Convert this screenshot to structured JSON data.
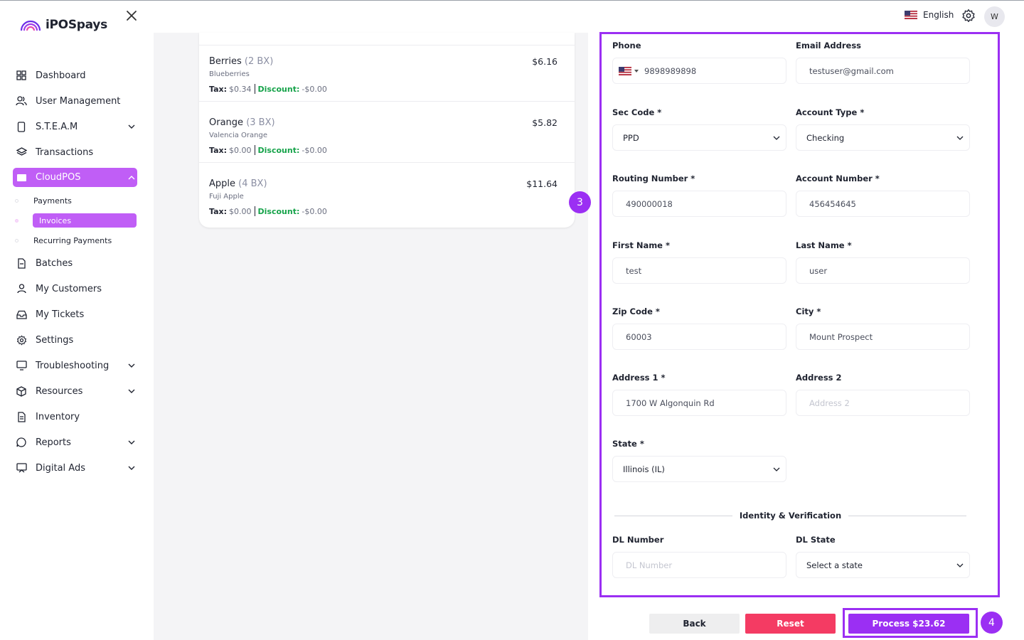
{
  "brand": {
    "name": "iPOSpays"
  },
  "sidebar": {
    "items": [
      {
        "label": "Dashboard",
        "icon": "grid-icon",
        "chevron": false
      },
      {
        "label": "User Management",
        "icon": "users-icon",
        "chevron": false
      },
      {
        "label": "S.T.E.A.M",
        "icon": "device-icon",
        "chevron": true
      },
      {
        "label": "Transactions",
        "icon": "layers-icon",
        "chevron": false
      },
      {
        "label": "CloudPOS",
        "icon": "cloudpos-icon",
        "chevron": true,
        "active": true
      }
    ],
    "subitems": [
      {
        "label": "Payments"
      },
      {
        "label": "Invoices",
        "active": true
      },
      {
        "label": "Recurring Payments"
      }
    ],
    "items_after": [
      {
        "label": "Batches",
        "icon": "batch-icon",
        "chevron": false
      },
      {
        "label": "My Customers",
        "icon": "person-icon",
        "chevron": false
      },
      {
        "label": "My Tickets",
        "icon": "inbox-icon",
        "chevron": false
      },
      {
        "label": "Settings",
        "icon": "gear-icon",
        "chevron": false
      },
      {
        "label": "Troubleshooting",
        "icon": "monitor-icon",
        "chevron": true
      },
      {
        "label": "Resources",
        "icon": "box-icon",
        "chevron": true
      },
      {
        "label": "Inventory",
        "icon": "document-icon",
        "chevron": false
      },
      {
        "label": "Reports",
        "icon": "chat-icon",
        "chevron": true
      },
      {
        "label": "Digital Ads",
        "icon": "screen-icon",
        "chevron": true
      }
    ]
  },
  "topbar": {
    "language": "English",
    "avatar_initial": "W"
  },
  "order": {
    "items": [
      {
        "name": "Berries",
        "qty": "(2 BX)",
        "price": "$6.16",
        "desc": "Blueberries",
        "tax_label": "Tax:",
        "tax": "$0.34",
        "discount_label": "Discount:",
        "discount": "-$0.00"
      },
      {
        "name": "Orange",
        "qty": "(3 BX)",
        "price": "$5.82",
        "desc": "Valencia Orange",
        "tax_label": "Tax:",
        "tax": "$0.00",
        "discount_label": "Discount:",
        "discount": "-$0.00"
      },
      {
        "name": "Apple",
        "qty": "(4 BX)",
        "price": "$11.64",
        "desc": "Fuji Apple",
        "tax_label": "Tax:",
        "tax": "$0.00",
        "discount_label": "Discount:",
        "discount": "-$0.00"
      }
    ]
  },
  "badges": {
    "step3": "3",
    "step4": "4"
  },
  "form": {
    "phone": {
      "label": "Phone",
      "value": "9898989898"
    },
    "email": {
      "label": "Email Address",
      "value": "testuser@gmail.com"
    },
    "sec_code": {
      "label": "Sec Code *",
      "value": "PPD"
    },
    "account_type": {
      "label": "Account Type *",
      "value": "Checking"
    },
    "routing": {
      "label": "Routing Number *",
      "value": "490000018"
    },
    "account_number": {
      "label": "Account Number *",
      "value": "456454645"
    },
    "first_name": {
      "label": "First Name *",
      "value": "test"
    },
    "last_name": {
      "label": "Last Name *",
      "value": "user"
    },
    "zip": {
      "label": "Zip Code *",
      "value": "60003"
    },
    "city": {
      "label": "City *",
      "value": "Mount Prospect"
    },
    "address1": {
      "label": "Address 1 *",
      "value": "1700 W Algonquin Rd"
    },
    "address2": {
      "label": "Address 2",
      "placeholder": "Address 2"
    },
    "state": {
      "label": "State *",
      "value": "Illinois (IL)"
    },
    "identity_heading": "Identity & Verification",
    "dl_number": {
      "label": "DL Number",
      "placeholder": "DL Number"
    },
    "dl_state": {
      "label": "DL State",
      "value": "Select a state"
    }
  },
  "buttons": {
    "back": "Back",
    "reset": "Reset",
    "process": "Process $23.62"
  },
  "colors": {
    "accent": "#9b2ff3",
    "active_nav": "#c05ef6",
    "reset": "#f43b63",
    "discount": "#16a34a"
  }
}
